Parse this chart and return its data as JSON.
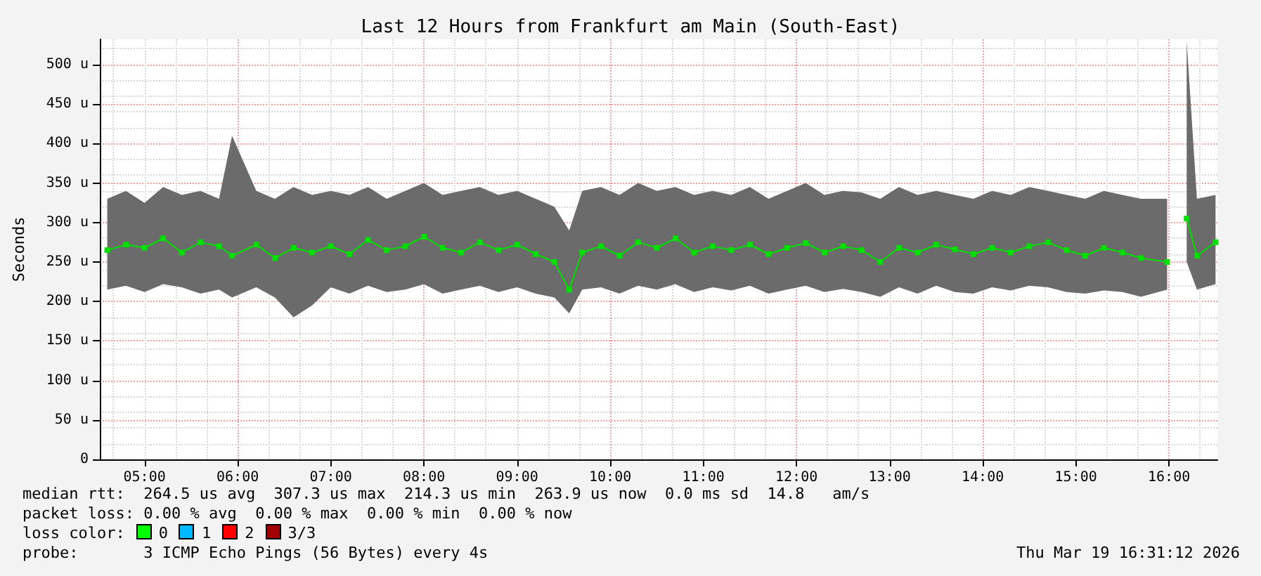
{
  "chart_data": {
    "type": "line",
    "title": "Last 12 Hours from Frankfurt am Main (South-East)",
    "ylabel": "Seconds",
    "x": [
      4.6,
      4.8,
      5.0,
      5.2,
      5.4,
      5.6,
      5.8,
      5.94,
      6.2,
      6.4,
      6.6,
      6.8,
      7.0,
      7.2,
      7.4,
      7.6,
      7.8,
      8.0,
      8.2,
      8.4,
      8.6,
      8.8,
      9.0,
      9.2,
      9.4,
      9.56,
      9.7,
      9.9,
      10.1,
      10.3,
      10.5,
      10.7,
      10.9,
      11.1,
      11.3,
      11.5,
      11.7,
      11.9,
      12.1,
      12.3,
      12.5,
      12.7,
      12.9,
      13.1,
      13.3,
      13.5,
      13.7,
      13.9,
      14.1,
      14.3,
      14.5,
      14.7,
      14.9,
      15.1,
      15.3,
      15.5,
      15.7,
      15.98,
      16.1,
      16.19,
      16.3,
      16.5
    ],
    "series": [
      {
        "color": "#00e000",
        "values": [
          265,
          272,
          268,
          280,
          262,
          275,
          270,
          258,
          272,
          255,
          268,
          262,
          270,
          260,
          278,
          265,
          270,
          282,
          268,
          262,
          275,
          265,
          272,
          260,
          250,
          215,
          262,
          270,
          258,
          275,
          268,
          280,
          262,
          270,
          265,
          272,
          260,
          268,
          274,
          262,
          270,
          265,
          250,
          268,
          262,
          272,
          266,
          260,
          268,
          262,
          270,
          275,
          265,
          258,
          268,
          262,
          255,
          250,
          null,
          305,
          258,
          275
        ],
        "lower": [
          215,
          220,
          212,
          222,
          218,
          210,
          215,
          205,
          218,
          205,
          180,
          195,
          218,
          210,
          220,
          212,
          215,
          222,
          210,
          215,
          220,
          212,
          218,
          210,
          205,
          185,
          215,
          218,
          210,
          220,
          215,
          222,
          212,
          218,
          214,
          220,
          210,
          215,
          220,
          212,
          216,
          212,
          206,
          218,
          210,
          220,
          212,
          210,
          218,
          214,
          220,
          218,
          212,
          210,
          214,
          212,
          206,
          215,
          null,
          250,
          215,
          222
        ],
        "upper": [
          330,
          340,
          325,
          345,
          335,
          340,
          330,
          410,
          340,
          330,
          345,
          335,
          340,
          335,
          345,
          330,
          340,
          350,
          335,
          340,
          345,
          335,
          340,
          330,
          320,
          290,
          340,
          345,
          335,
          350,
          340,
          345,
          335,
          340,
          335,
          345,
          330,
          340,
          350,
          335,
          340,
          338,
          330,
          345,
          335,
          340,
          335,
          330,
          340,
          335,
          345,
          340,
          335,
          330,
          340,
          335,
          330,
          330,
          null,
          530,
          330,
          335
        ]
      }
    ],
    "xlim": [
      4.52,
      16.52
    ],
    "xticks": [
      {
        "value": 5,
        "label": "05:00"
      },
      {
        "value": 6,
        "label": "06:00"
      },
      {
        "value": 7,
        "label": "07:00"
      },
      {
        "value": 8,
        "label": "08:00"
      },
      {
        "value": 9,
        "label": "09:00"
      },
      {
        "value": 10,
        "label": "10:00"
      },
      {
        "value": 11,
        "label": "11:00"
      },
      {
        "value": 12,
        "label": "12:00"
      },
      {
        "value": 13,
        "label": "13:00"
      },
      {
        "value": 14,
        "label": "14:00"
      },
      {
        "value": 15,
        "label": "15:00"
      },
      {
        "value": 16,
        "label": "16:00"
      }
    ],
    "ylim": [
      0,
      532
    ],
    "yticks": [
      0,
      {
        "value": 50,
        "label": "50 u"
      },
      {
        "value": 100,
        "label": "100 u"
      },
      {
        "value": 150,
        "label": "150 u"
      },
      {
        "value": 200,
        "label": "200 u"
      },
      {
        "value": 250,
        "label": "250 u"
      },
      {
        "value": 300,
        "label": "300 u"
      },
      {
        "value": 350,
        "label": "350 u"
      },
      {
        "value": 400,
        "label": "400 u"
      },
      {
        "value": 450,
        "label": "450 u"
      },
      {
        "value": 500,
        "label": "500 u"
      }
    ],
    "grid": true,
    "marker": "square",
    "line_style": "solid",
    "annotations": [
      "median rtt:  264.5 us avg  307.3 us max  214.3 us min  263.9 us now  0.0 ms sd  14.8   am/s",
      "packet loss: 0.00 % avg  0.00 % max  0.00 % min  0.00 % now",
      "loss color:",
      "0",
      "1",
      "2",
      "3/3",
      "probe:       3 ICMP Echo Pings (56 Bytes) every 4s",
      "Thu Mar 19 16:31:12 2026"
    ]
  }
}
